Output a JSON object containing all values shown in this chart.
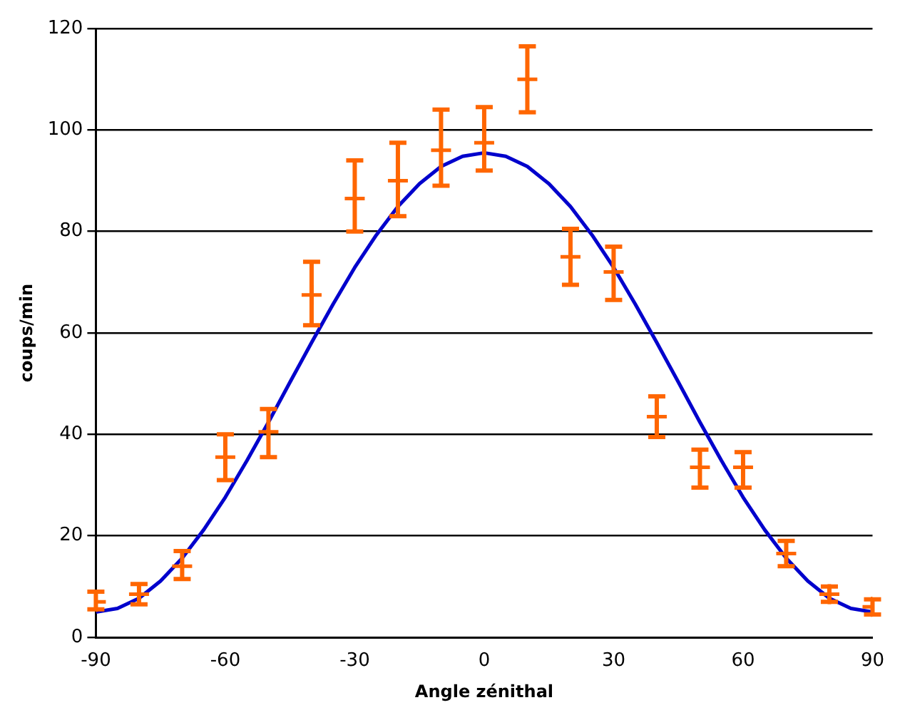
{
  "chart_data": {
    "type": "scatter",
    "xlabel": "Angle zénithal",
    "ylabel": "coups/min",
    "xlim": [
      -90,
      90
    ],
    "xticks": [
      -90,
      -60,
      -30,
      0,
      30,
      60,
      90
    ],
    "ylim": [
      0,
      120
    ],
    "yticks": [
      0,
      20,
      40,
      60,
      80,
      100,
      120
    ],
    "grid": "y",
    "legend": false,
    "series": [
      {
        "color": "#ff6600",
        "marker": "cross",
        "x": [
          -90,
          -80,
          -70,
          -60,
          -50,
          -40,
          -30,
          -20,
          -10,
          0,
          10,
          20,
          30,
          40,
          50,
          60,
          70,
          80,
          90
        ],
        "values": [
          7,
          8.5,
          14,
          35.5,
          40.5,
          67.5,
          86.5,
          90,
          96,
          97.5,
          110,
          75,
          72,
          43.5,
          33.5,
          33.5,
          16.5,
          8.5,
          6
        ],
        "errors": [
          [
            5.5,
            9
          ],
          [
            6.5,
            10.5
          ],
          [
            11.5,
            17
          ],
          [
            31,
            40
          ],
          [
            35.5,
            45
          ],
          [
            61.5,
            74
          ],
          [
            80,
            94
          ],
          [
            83,
            97.5
          ],
          [
            89,
            104
          ],
          [
            92,
            104.5
          ],
          [
            103.5,
            116.5
          ],
          [
            69.5,
            80.5
          ],
          [
            66.5,
            77
          ],
          [
            39.5,
            47.5
          ],
          [
            29.5,
            37
          ],
          [
            29.5,
            36.5
          ],
          [
            14,
            19
          ],
          [
            7,
            10
          ],
          [
            4.5,
            7.5
          ]
        ]
      },
      {
        "type": "line",
        "color": "#0000cc",
        "marker": "none",
        "x": [
          -90,
          -85,
          -80,
          -75,
          -70,
          -65,
          -60,
          -55,
          -50,
          -45,
          -40,
          -35,
          -30,
          -25,
          -20,
          -15,
          -10,
          -5,
          0,
          5,
          10,
          15,
          20,
          25,
          30,
          35,
          40,
          45,
          50,
          55,
          60,
          65,
          70,
          75,
          80,
          85,
          90
        ],
        "values": [
          5,
          5.7,
          7.7,
          11.1,
          15.6,
          21.2,
          27.6,
          34.8,
          42.4,
          50.3,
          58.1,
          65.7,
          72.9,
          79.3,
          84.9,
          89.4,
          92.8,
          94.8,
          95.5,
          94.8,
          92.8,
          89.4,
          84.9,
          79.3,
          72.9,
          65.7,
          58.1,
          50.3,
          42.4,
          34.8,
          27.6,
          21.2,
          15.6,
          11.1,
          7.7,
          5.7,
          5
        ]
      }
    ]
  }
}
